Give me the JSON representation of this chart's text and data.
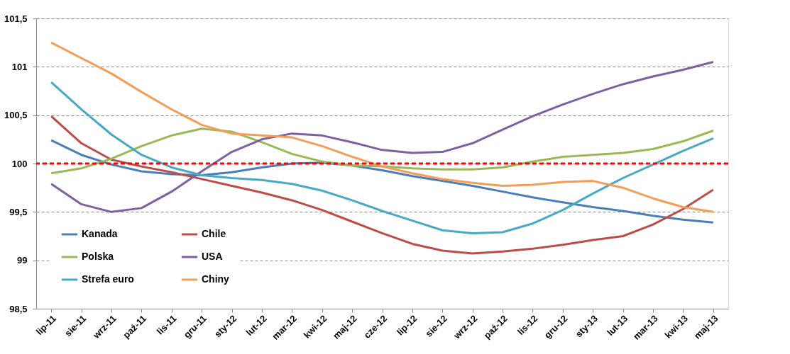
{
  "chart_data": {
    "type": "line",
    "categories": [
      "lip-11",
      "sie-11",
      "wrz-11",
      "paź-11",
      "lis-11",
      "gru-11",
      "sty-12",
      "lut-12",
      "mar-12",
      "kwi-12",
      "maj-12",
      "cze-12",
      "lip-12",
      "sie-12",
      "wrz-12",
      "paź-12",
      "lis-12",
      "gru-12",
      "sty-13",
      "lut-13",
      "mar-13",
      "kwi-13",
      "maj-13"
    ],
    "series": [
      {
        "name": "Kanada",
        "color": "#4a7ebb",
        "values": [
          100.24,
          100.09,
          99.99,
          99.92,
          99.89,
          99.88,
          99.91,
          99.96,
          100.0,
          100.01,
          99.98,
          99.93,
          99.87,
          99.82,
          99.77,
          99.71,
          99.65,
          99.6,
          99.55,
          99.51,
          99.46,
          99.42,
          99.39
        ]
      },
      {
        "name": "Chile",
        "color": "#be4b48",
        "values": [
          100.49,
          100.21,
          100.04,
          99.97,
          99.91,
          99.84,
          99.77,
          99.7,
          99.62,
          99.52,
          99.4,
          99.28,
          99.17,
          99.1,
          99.07,
          99.09,
          99.12,
          99.16,
          99.21,
          99.25,
          99.37,
          99.53,
          99.73
        ]
      },
      {
        "name": "Polska",
        "color": "#98b954",
        "values": [
          99.9,
          99.95,
          100.05,
          100.18,
          100.29,
          100.36,
          100.33,
          100.22,
          100.1,
          100.02,
          99.98,
          99.97,
          99.95,
          99.94,
          99.94,
          99.96,
          100.02,
          100.07,
          100.09,
          100.11,
          100.15,
          100.23,
          100.34
        ]
      },
      {
        "name": "USA",
        "color": "#7d60a0",
        "values": [
          99.79,
          99.58,
          99.5,
          99.54,
          99.71,
          99.92,
          100.12,
          100.25,
          100.31,
          100.29,
          100.22,
          100.14,
          100.11,
          100.12,
          100.21,
          100.35,
          100.49,
          100.61,
          100.72,
          100.82,
          100.9,
          100.97,
          101.05
        ]
      },
      {
        "name": "Strefa euro",
        "color": "#46aac5",
        "values": [
          100.84,
          100.56,
          100.3,
          100.09,
          99.96,
          99.88,
          99.85,
          99.83,
          99.79,
          99.72,
          99.62,
          99.51,
          99.41,
          99.31,
          99.28,
          99.29,
          99.38,
          99.52,
          99.69,
          99.85,
          99.99,
          100.13,
          100.26
        ]
      },
      {
        "name": "Chiny",
        "color": "#f59d56",
        "values": [
          101.25,
          101.09,
          100.93,
          100.74,
          100.56,
          100.4,
          100.31,
          100.29,
          100.27,
          100.18,
          100.07,
          99.97,
          99.9,
          99.84,
          99.8,
          99.77,
          99.78,
          99.81,
          99.82,
          99.75,
          99.64,
          99.55,
          99.5
        ]
      }
    ],
    "ylim": [
      98.5,
      101.5
    ],
    "yticks": [
      {
        "value": 98.5,
        "label": "98,5"
      },
      {
        "value": 99,
        "label": "99"
      },
      {
        "value": 99.5,
        "label": "99,5"
      },
      {
        "value": 100,
        "label": "100"
      },
      {
        "value": 100.5,
        "label": "100,5"
      },
      {
        "value": 101,
        "label": "101"
      },
      {
        "value": 101.5,
        "label": "101,5"
      }
    ],
    "ref_lines": [
      {
        "axis": "y",
        "value": 100,
        "color": "#ff0000",
        "line_style": "dashed"
      }
    ],
    "grid": "y",
    "legend": "bottom left",
    "line_style": "solid",
    "marker": "none"
  }
}
